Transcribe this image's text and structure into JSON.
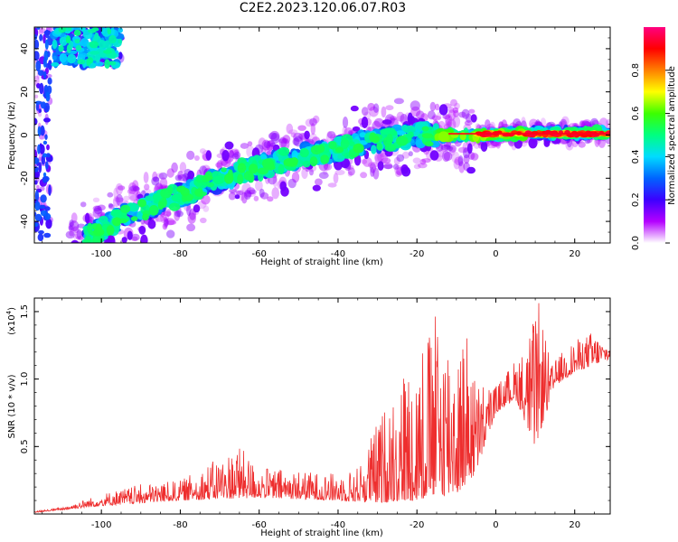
{
  "figure": {
    "title": "C2E2.2023.120.06.07.R03"
  },
  "chart_data": [
    {
      "type": "heatmap",
      "title": "C2E2.2023.120.06.07.R03",
      "xlabel": "Height of straight line (km)",
      "ylabel": "Frequency (Hz)",
      "xlim": [
        -117,
        29
      ],
      "ylim": [
        -50,
        50
      ],
      "x_ticks": [
        -100,
        -80,
        -60,
        -40,
        -20,
        0,
        20
      ],
      "y_ticks": [
        -40,
        -20,
        0,
        20,
        40
      ],
      "colorbar": {
        "label": "Normalized spectral amplitude",
        "range": [
          0,
          1
        ],
        "ticks": [
          "0.0",
          "0.2",
          "0.4",
          "0.6",
          "0.8"
        ],
        "colormap": [
          "#ffffff",
          "#b400ff",
          "#3c00ff",
          "#0064ff",
          "#00dcff",
          "#00ff80",
          "#3cff00",
          "#ffff00",
          "#ff8000",
          "#ff0000",
          "#ff0080"
        ]
      },
      "ridge": {
        "description_points": [
          {
            "x": -102,
            "y": -46
          },
          {
            "x": -95,
            "y": -38
          },
          {
            "x": -88,
            "y": -33
          },
          {
            "x": -80,
            "y": -28
          },
          {
            "x": -72,
            "y": -22
          },
          {
            "x": -65,
            "y": -17
          },
          {
            "x": -58,
            "y": -14
          },
          {
            "x": -50,
            "y": -10
          },
          {
            "x": -42,
            "y": -8
          },
          {
            "x": -35,
            "y": -4
          },
          {
            "x": -28,
            "y": -2
          },
          {
            "x": -20,
            "y": 0
          },
          {
            "x": -10,
            "y": 0
          },
          {
            "x": 0,
            "y": 0
          },
          {
            "x": 10,
            "y": 1
          },
          {
            "x": 20,
            "y": 1
          },
          {
            "x": 29,
            "y": 1
          }
        ],
        "upper_left_band": {
          "x_range": [
            -112,
            -95
          ],
          "y_range": [
            32,
            50
          ]
        },
        "left_column": {
          "x": -115,
          "y_range": [
            -50,
            50
          ]
        }
      }
    },
    {
      "type": "line",
      "xlabel": "Height of straight line (km)",
      "ylabel": "SNR (10 * v/v)",
      "y_multiplier": "(x10",
      "y_multiplier_exp": "4",
      "y_multiplier_close": ")",
      "xlim": [
        -117,
        29
      ],
      "ylim": [
        0,
        16000
      ],
      "x_ticks": [
        -100,
        -80,
        -60,
        -40,
        -20,
        0,
        20
      ],
      "y_ticks": [
        {
          "value": 5000,
          "label": "0.5"
        },
        {
          "value": 10000,
          "label": "1.0"
        },
        {
          "value": 15000,
          "label": "1.5"
        }
      ],
      "series": [
        {
          "color": "#ee2e2e",
          "envelope": [
            {
              "x": -117,
              "y": 200
            },
            {
              "x": -110,
              "y": 500
            },
            {
              "x": -100,
              "y": 1500
            },
            {
              "x": -90,
              "y": 2200
            },
            {
              "x": -80,
              "y": 2500
            },
            {
              "x": -70,
              "y": 4200
            },
            {
              "x": -65,
              "y": 5000
            },
            {
              "x": -60,
              "y": 3500
            },
            {
              "x": -50,
              "y": 3200
            },
            {
              "x": -40,
              "y": 3000
            },
            {
              "x": -35,
              "y": 3500
            },
            {
              "x": -30,
              "y": 7000
            },
            {
              "x": -25,
              "y": 10000
            },
            {
              "x": -20,
              "y": 12500
            },
            {
              "x": -15,
              "y": 15000
            },
            {
              "x": -10,
              "y": 13000
            },
            {
              "x": -7,
              "y": 14000
            },
            {
              "x": -5,
              "y": 10000
            },
            {
              "x": 0,
              "y": 9500
            },
            {
              "x": 5,
              "y": 11500
            },
            {
              "x": 8,
              "y": 13000
            },
            {
              "x": 11,
              "y": 15800
            },
            {
              "x": 14,
              "y": 11000
            },
            {
              "x": 18,
              "y": 12500
            },
            {
              "x": 24,
              "y": 13500
            },
            {
              "x": 29,
              "y": 12500
            }
          ],
          "baseline": [
            {
              "x": -117,
              "y": 100
            },
            {
              "x": -100,
              "y": 600
            },
            {
              "x": -80,
              "y": 1000
            },
            {
              "x": -60,
              "y": 1200
            },
            {
              "x": -40,
              "y": 1000
            },
            {
              "x": -30,
              "y": 800
            },
            {
              "x": -20,
              "y": 1000
            },
            {
              "x": -10,
              "y": 1500
            },
            {
              "x": -5,
              "y": 3000
            },
            {
              "x": 0,
              "y": 7500
            },
            {
              "x": 5,
              "y": 8500
            },
            {
              "x": 10,
              "y": 5000
            },
            {
              "x": 15,
              "y": 9500
            },
            {
              "x": 20,
              "y": 10500
            },
            {
              "x": 29,
              "y": 11500
            }
          ]
        }
      ]
    }
  ]
}
